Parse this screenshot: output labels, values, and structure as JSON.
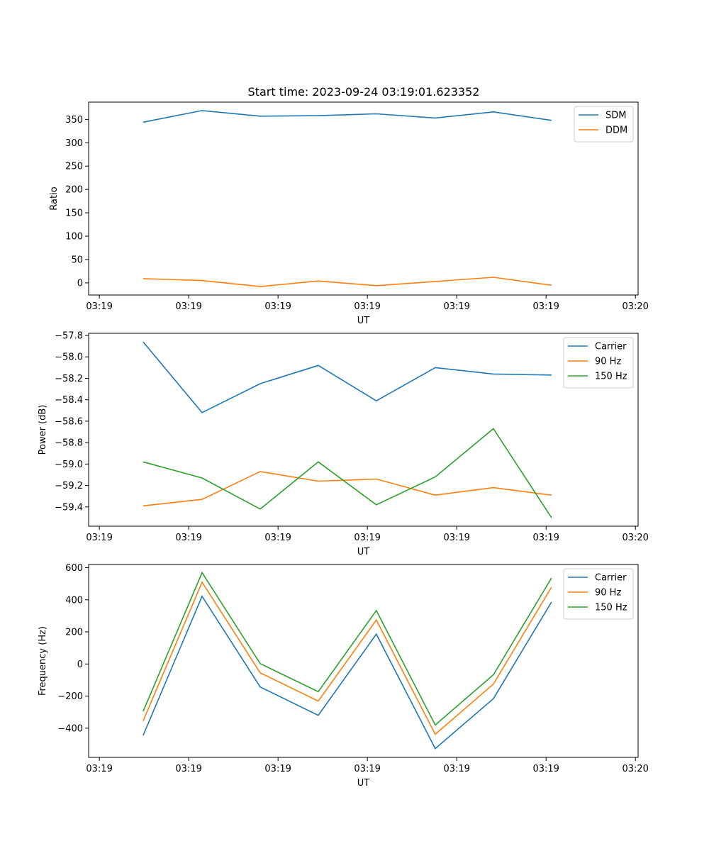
{
  "figure_title": "Start time: 2023-09-24 03:19:01.623352",
  "chart_data": [
    {
      "type": "line",
      "title": "Start time: 2023-09-24 03:19:01.623352",
      "xlabel": "UT",
      "ylabel": "Ratio",
      "x_tick_labels": [
        "03:19",
        "03:19",
        "03:19",
        "03:19",
        "03:19",
        "03:19",
        "03:20"
      ],
      "x_ticks_seconds": [
        0,
        10,
        20,
        30,
        40,
        50,
        60
      ],
      "xlim": [
        -1.2,
        60.3
      ],
      "ylim": [
        -26,
        387
      ],
      "y_ticks": [
        0,
        50,
        100,
        150,
        200,
        250,
        300,
        350
      ],
      "y_tick_labels": [
        "0",
        "50",
        "100",
        "150",
        "200",
        "250",
        "300",
        "350"
      ],
      "x": [
        4.9,
        11.5,
        18.0,
        24.5,
        31.0,
        37.6,
        44.1,
        50.6
      ],
      "legend_position": "upper right",
      "series": [
        {
          "name": "SDM",
          "color": "#1f77b4",
          "values": [
            344,
            369,
            357,
            358,
            362,
            353,
            366,
            348
          ]
        },
        {
          "name": "DDM",
          "color": "#ff7f0e",
          "values": [
            9,
            5,
            -8,
            4,
            -6,
            3,
            12,
            -5
          ]
        }
      ]
    },
    {
      "type": "line",
      "title": "",
      "xlabel": "UT",
      "ylabel": "Power (dB)",
      "x_tick_labels": [
        "03:19",
        "03:19",
        "03:19",
        "03:19",
        "03:19",
        "03:19",
        "03:20"
      ],
      "x_ticks_seconds": [
        0,
        10,
        20,
        30,
        40,
        50,
        60
      ],
      "xlim": [
        -1.2,
        60.3
      ],
      "ylim": [
        -59.58,
        -57.78
      ],
      "y_ticks": [
        -57.8,
        -58.0,
        -58.2,
        -58.4,
        -58.6,
        -58.8,
        -59.0,
        -59.2,
        -59.4
      ],
      "y_tick_labels": [
        "−57.8",
        "−58.0",
        "−58.2",
        "−58.4",
        "−58.6",
        "−58.8",
        "−59.0",
        "−59.2",
        "−59.4"
      ],
      "x": [
        4.9,
        11.5,
        18.0,
        24.5,
        31.0,
        37.6,
        44.1,
        50.6
      ],
      "legend_position": "upper right",
      "series": [
        {
          "name": "Carrier",
          "color": "#1f77b4",
          "values": [
            -57.86,
            -58.52,
            -58.25,
            -58.08,
            -58.41,
            -58.1,
            -58.16,
            -58.17
          ]
        },
        {
          "name": "90 Hz",
          "color": "#ff7f0e",
          "values": [
            -59.39,
            -59.33,
            -59.07,
            -59.16,
            -59.14,
            -59.29,
            -59.22,
            -59.29
          ]
        },
        {
          "name": "150 Hz",
          "color": "#2ca02c",
          "values": [
            -58.98,
            -59.13,
            -59.42,
            -58.98,
            -59.38,
            -59.12,
            -58.67,
            -59.5
          ]
        }
      ]
    },
    {
      "type": "line",
      "title": "",
      "xlabel": "UT",
      "ylabel": "Frequency (Hz)",
      "x_tick_labels": [
        "03:19",
        "03:19",
        "03:19",
        "03:19",
        "03:19",
        "03:19",
        "03:20"
      ],
      "x_ticks_seconds": [
        0,
        10,
        20,
        30,
        40,
        50,
        60
      ],
      "xlim": [
        -1.2,
        60.3
      ],
      "ylim": [
        -582,
        620
      ],
      "y_ticks": [
        600,
        400,
        200,
        0,
        -200,
        -400
      ],
      "y_tick_labels": [
        "600",
        "400",
        "200",
        "0",
        "−200",
        "−400"
      ],
      "x": [
        4.9,
        11.5,
        18.0,
        24.5,
        31.0,
        37.6,
        44.1,
        50.6
      ],
      "legend_position": "upper right",
      "series": [
        {
          "name": "Carrier",
          "color": "#1f77b4",
          "values": [
            -445,
            422,
            -143,
            -320,
            186,
            -527,
            -216,
            386
          ]
        },
        {
          "name": "90 Hz",
          "color": "#ff7f0e",
          "values": [
            -354,
            510,
            -55,
            -231,
            274,
            -438,
            -125,
            478
          ]
        },
        {
          "name": "150 Hz",
          "color": "#2ca02c",
          "values": [
            -295,
            569,
            2,
            -173,
            333,
            -380,
            -67,
            535
          ]
        }
      ]
    }
  ]
}
